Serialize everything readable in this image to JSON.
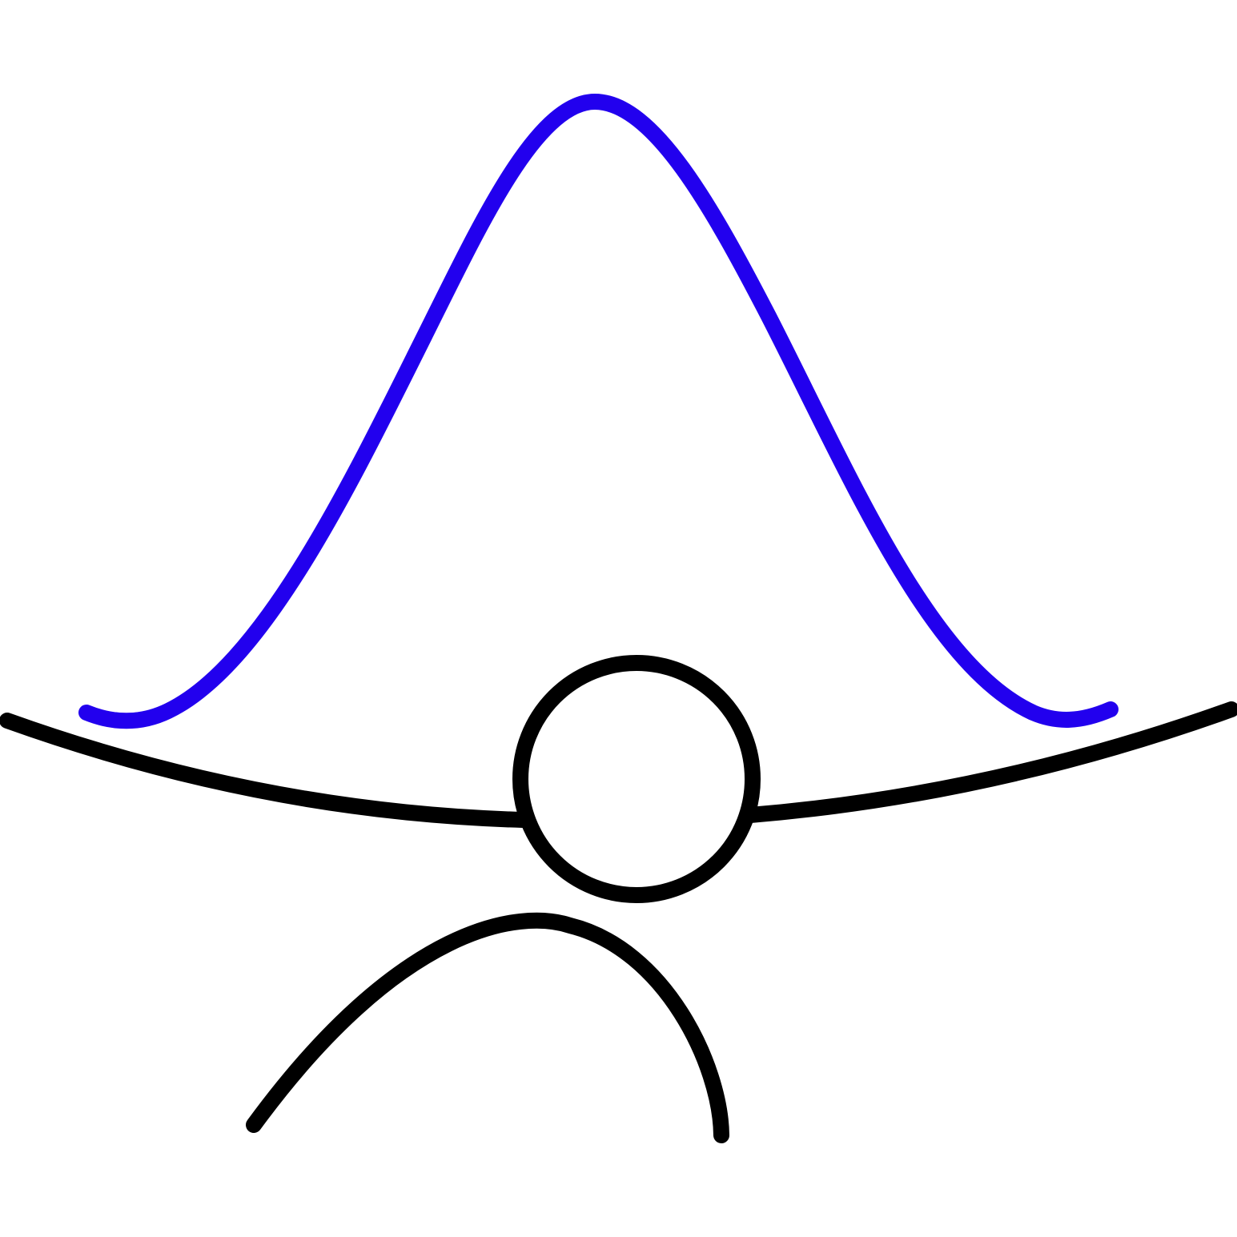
{
  "colors": {
    "background": "#ffffff",
    "bell_curve": "#2200ee",
    "ink": "#000000"
  },
  "shapes": [
    {
      "name": "bell-curve",
      "kind": "curve",
      "color": "bell_curve"
    },
    {
      "name": "left-arm",
      "kind": "curve",
      "color": "ink"
    },
    {
      "name": "right-arm",
      "kind": "curve",
      "color": "ink"
    },
    {
      "name": "head-circle",
      "kind": "circle",
      "color": "ink"
    },
    {
      "name": "lower-arch",
      "kind": "curve",
      "color": "ink"
    }
  ]
}
